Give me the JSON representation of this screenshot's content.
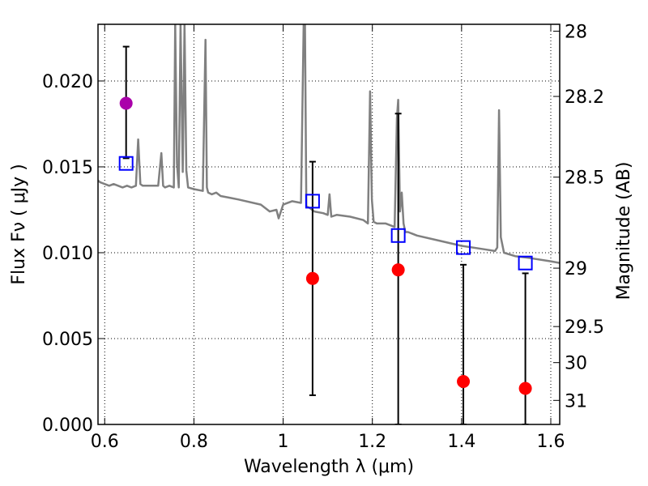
{
  "chart_data": {
    "type": "scatter",
    "xlabel": "Wavelength  λ (μm)",
    "ylabel": "Flux  Fν  ( μJy )",
    "y2label": "Magnitude (AB)",
    "xlim": [
      0.585,
      1.62
    ],
    "ylim": [
      0.0,
      0.0233
    ],
    "x_ticks": [
      0.6,
      0.8,
      1.0,
      1.2,
      1.4,
      1.6
    ],
    "x_tick_labels": [
      "0.6",
      "0.8",
      "1",
      "1.2",
      "1.4",
      "1.6"
    ],
    "y_ticks": [
      0.0,
      0.005,
      0.01,
      0.015,
      0.02
    ],
    "y_tick_labels": [
      "0.000",
      "0.005",
      "0.010",
      "0.015",
      "0.020"
    ],
    "y2_ticks": [
      {
        "label": "28",
        "flux": 0.0229
      },
      {
        "label": "28.2",
        "flux": 0.0191
      },
      {
        "label": "28.5",
        "flux": 0.0144
      },
      {
        "label": "29",
        "flux": 0.0091
      },
      {
        "label": "29.5",
        "flux": 0.0057
      },
      {
        "label": "30",
        "flux": 0.0036
      },
      {
        "label": "31",
        "flux": 0.0014
      }
    ],
    "grid": true,
    "colors": {
      "model": "#808080",
      "observed": "#ff0000",
      "observed_alt": "#aa00aa",
      "model_photometry": "#0000ff",
      "errorbar": "#000000"
    },
    "model_spectrum": {
      "x": [
        0.585,
        0.59,
        0.6,
        0.61,
        0.62,
        0.63,
        0.64,
        0.65,
        0.66,
        0.67,
        0.675,
        0.68,
        0.685,
        0.7,
        0.72,
        0.727,
        0.731,
        0.735,
        0.745,
        0.755,
        0.758,
        0.762,
        0.766,
        0.77,
        0.775,
        0.779,
        0.783,
        0.787,
        0.8,
        0.82,
        0.826,
        0.829,
        0.832,
        0.84,
        0.85,
        0.86,
        0.88,
        0.9,
        0.95,
        0.97,
        0.985,
        0.99,
        0.995,
        1.0,
        1.02,
        1.04,
        1.046,
        1.049,
        1.052,
        1.06,
        1.07,
        1.09,
        1.1,
        1.104,
        1.108,
        1.12,
        1.15,
        1.18,
        1.19,
        1.195,
        1.199,
        1.203,
        1.21,
        1.23,
        1.25,
        1.255,
        1.258,
        1.262,
        1.266,
        1.27,
        1.274,
        1.28,
        1.3,
        1.35,
        1.4,
        1.45,
        1.475,
        1.48,
        1.484,
        1.488,
        1.495,
        1.52,
        1.55,
        1.6,
        1.62
      ],
      "y": [
        0.0142,
        0.0141,
        0.014,
        0.0139,
        0.014,
        0.0139,
        0.0138,
        0.0139,
        0.0138,
        0.0139,
        0.0166,
        0.014,
        0.0139,
        0.0139,
        0.0139,
        0.0158,
        0.0139,
        0.0138,
        0.0139,
        0.0138,
        0.0233,
        0.0152,
        0.0138,
        0.0233,
        0.0147,
        0.0233,
        0.0148,
        0.0138,
        0.0137,
        0.0136,
        0.0224,
        0.0138,
        0.0135,
        0.0134,
        0.0135,
        0.0133,
        0.0132,
        0.0131,
        0.0128,
        0.0124,
        0.0125,
        0.012,
        0.0124,
        0.0128,
        0.013,
        0.0129,
        0.0233,
        0.0233,
        0.0127,
        0.0126,
        0.0124,
        0.0123,
        0.0122,
        0.0134,
        0.0121,
        0.0122,
        0.0121,
        0.0119,
        0.0117,
        0.0194,
        0.0131,
        0.0118,
        0.0117,
        0.0117,
        0.0115,
        0.0178,
        0.0189,
        0.0124,
        0.0135,
        0.0117,
        0.0112,
        0.0112,
        0.011,
        0.0107,
        0.0104,
        0.0102,
        0.0101,
        0.0103,
        0.0183,
        0.0109,
        0.01,
        0.0098,
        0.0097,
        0.0095,
        0.0094
      ]
    },
    "model_photometry": {
      "x": [
        0.648,
        1.066,
        1.258,
        1.404,
        1.543
      ],
      "y": [
        0.0152,
        0.013,
        0.011,
        0.0103,
        0.0094
      ]
    },
    "observed": {
      "x": [
        0.648,
        1.066,
        1.258,
        1.404,
        1.543
      ],
      "y": [
        0.0187,
        0.0085,
        0.009,
        0.0025,
        0.0021
      ],
      "color_keys": [
        "observed_alt",
        "observed",
        "observed",
        "observed",
        "observed"
      ],
      "err_upper": [
        0.022,
        0.0153,
        0.0181,
        0.0093,
        0.0088
      ],
      "err_lower": [
        0.0155,
        0.0017,
        0.0,
        0.0,
        0.0
      ]
    }
  }
}
